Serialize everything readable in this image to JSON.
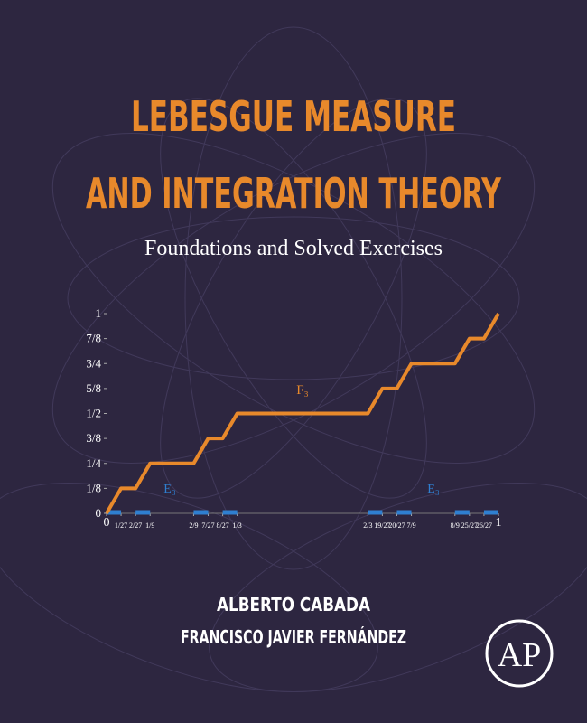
{
  "header": {
    "title": [
      "LEBESGUE MEASURE",
      "AND INTEGRATION THEORY"
    ],
    "subtitle": "Foundations and Solved Exercises"
  },
  "authors": [
    "ALBERTO CABADA",
    "FRANCISCO JAVIER FERNÁNDEZ"
  ],
  "logo_text": "AP",
  "chart_data": {
    "type": "line",
    "x": [
      0,
      0.037,
      0.0741,
      0.1111,
      0.2222,
      0.2593,
      0.2963,
      0.3333,
      0.6667,
      0.7037,
      0.7407,
      0.7778,
      0.8889,
      0.9259,
      0.963,
      1
    ],
    "series": [
      {
        "name": "F₃",
        "color": "#e8892b",
        "values": [
          0,
          0.125,
          0.125,
          0.25,
          0.25,
          0.375,
          0.375,
          0.5,
          0.5,
          0.625,
          0.625,
          0.75,
          0.75,
          0.875,
          0.875,
          1
        ]
      }
    ],
    "set": {
      "name": "E₃",
      "color": "#2f7fd0",
      "intervals": [
        [
          0,
          0.037
        ],
        [
          0.0741,
          0.1111
        ],
        [
          0.2222,
          0.2593
        ],
        [
          0.2963,
          0.3333
        ],
        [
          0.6667,
          0.7037
        ],
        [
          0.7407,
          0.7778
        ],
        [
          0.8889,
          0.9259
        ],
        [
          0.963,
          1
        ]
      ]
    },
    "xlim": [
      0,
      1
    ],
    "ylim": [
      0,
      1
    ],
    "xticks": [
      0,
      {
        "value": 0.037,
        "label": "1/27"
      },
      {
        "value": 0.0741,
        "label": "2/27"
      },
      {
        "value": 0.1111,
        "label": "1/9"
      },
      {
        "value": 0.2222,
        "label": "2/9"
      },
      {
        "value": 0.2593,
        "label": "7/27"
      },
      {
        "value": 0.2963,
        "label": "8/27"
      },
      {
        "value": 0.3333,
        "label": "1/3"
      },
      {
        "value": 0.6667,
        "label": "2/3"
      },
      {
        "value": 0.7037,
        "label": "19/27"
      },
      {
        "value": 0.7407,
        "label": "20/27"
      },
      {
        "value": 0.7778,
        "label": "7/9"
      },
      {
        "value": 0.8889,
        "label": "8/9"
      },
      {
        "value": 0.9259,
        "label": "25/27"
      },
      {
        "value": 0.963,
        "label": "26/27"
      },
      1
    ],
    "yticks": [
      0,
      {
        "value": 0.125,
        "label": "1/8"
      },
      {
        "value": 0.25,
        "label": "1/4"
      },
      {
        "value": 0.375,
        "label": "3/8"
      },
      {
        "value": 0.5,
        "label": "1/2"
      },
      {
        "value": 0.625,
        "label": "5/8"
      },
      {
        "value": 0.75,
        "label": "3/4"
      },
      {
        "value": 0.875,
        "label": "7/8"
      },
      1
    ]
  }
}
